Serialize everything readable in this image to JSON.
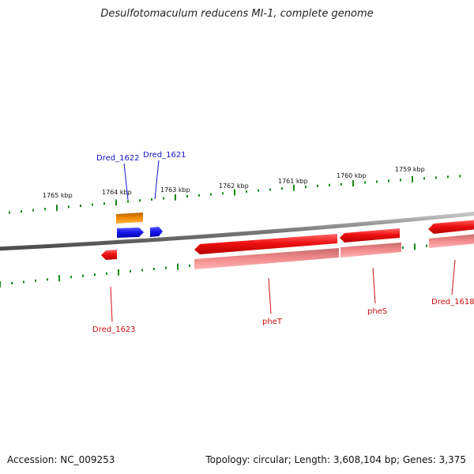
{
  "title": "Desulfotomaculum reducens MI-1, complete genome",
  "footer": {
    "accession": "Accession: NC_009253",
    "topology": "Topology: circular; Length: 3,608,104 bp; Genes: 3,375"
  },
  "colors": {
    "backbone": "#8c8c8c",
    "tick": "#1a8a1a",
    "gene_red": "#ee1111",
    "gene_pink": "#f08888",
    "gene_blue": "#1a1aee",
    "gene_orange": "#f08a00",
    "label_red": "#cc1111",
    "label_blue": "#1111cc"
  },
  "scale_labels": [
    {
      "text": "1765 kbp",
      "kbp": 1765
    },
    {
      "text": "1764 kbp",
      "kbp": 1764
    },
    {
      "text": "1763 kbp",
      "kbp": 1763
    },
    {
      "text": "1762 kbp",
      "kbp": 1762
    },
    {
      "text": "1761 kbp",
      "kbp": 1761
    },
    {
      "text": "1760 kbp",
      "kbp": 1760
    },
    {
      "text": "1759 kbp",
      "kbp": 1759
    }
  ],
  "gene_labels": [
    {
      "text": "Dred_1622",
      "color": "blue"
    },
    {
      "text": "Dred_1621",
      "color": "blue"
    },
    {
      "text": "Dred_1623",
      "color": "red"
    },
    {
      "text": "pheT",
      "color": "red"
    },
    {
      "text": "pheS",
      "color": "red"
    },
    {
      "text": "Dred_1618",
      "color": "red"
    }
  ]
}
